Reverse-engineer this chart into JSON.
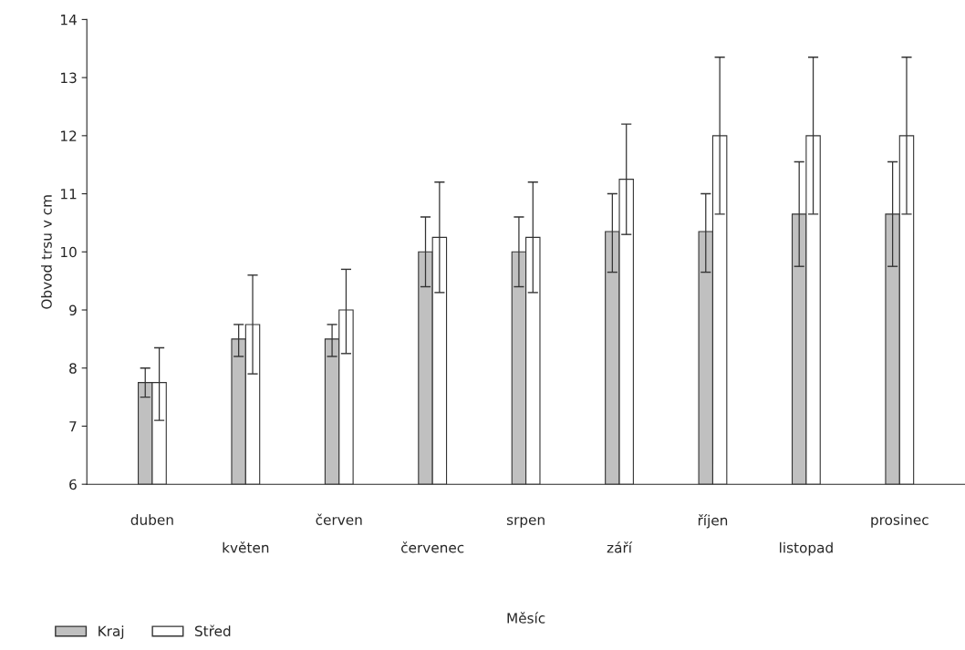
{
  "chart_data": {
    "type": "bar",
    "xlabel": "Měsíc",
    "ylabel": "Obvod trsu v cm",
    "categories": [
      "duben",
      "květen",
      "červen",
      "červenec",
      "srpen",
      "září",
      "říjen",
      "listopad",
      "prosinec"
    ],
    "series": [
      {
        "name": "Kraj",
        "color": "#c0c0c0",
        "values": [
          7.75,
          8.5,
          8.5,
          10.0,
          10.0,
          10.35,
          10.35,
          10.65,
          10.65
        ],
        "errors": [
          [
            7.5,
            8.0
          ],
          [
            8.2,
            8.75
          ],
          [
            8.2,
            8.75
          ],
          [
            9.4,
            10.6
          ],
          [
            9.4,
            10.6
          ],
          [
            9.65,
            11.0
          ],
          [
            9.65,
            11.0
          ],
          [
            9.75,
            11.55
          ],
          [
            9.75,
            11.55
          ]
        ]
      },
      {
        "name": "Střed",
        "color": "#ffffff",
        "values": [
          7.75,
          8.75,
          9.0,
          10.25,
          10.25,
          11.25,
          12.0,
          12.0,
          12.0
        ],
        "errors": [
          [
            7.1,
            8.35
          ],
          [
            7.9,
            9.6
          ],
          [
            8.25,
            9.7
          ],
          [
            9.3,
            11.2
          ],
          [
            9.3,
            11.2
          ],
          [
            10.3,
            12.2
          ],
          [
            10.65,
            13.35
          ],
          [
            10.65,
            13.35
          ],
          [
            10.65,
            13.35
          ]
        ]
      }
    ],
    "ylim": [
      6,
      14
    ],
    "yticks": [
      6,
      7,
      8,
      9,
      10,
      11,
      12,
      13,
      14
    ],
    "grid": false,
    "legend": "bottom left"
  }
}
